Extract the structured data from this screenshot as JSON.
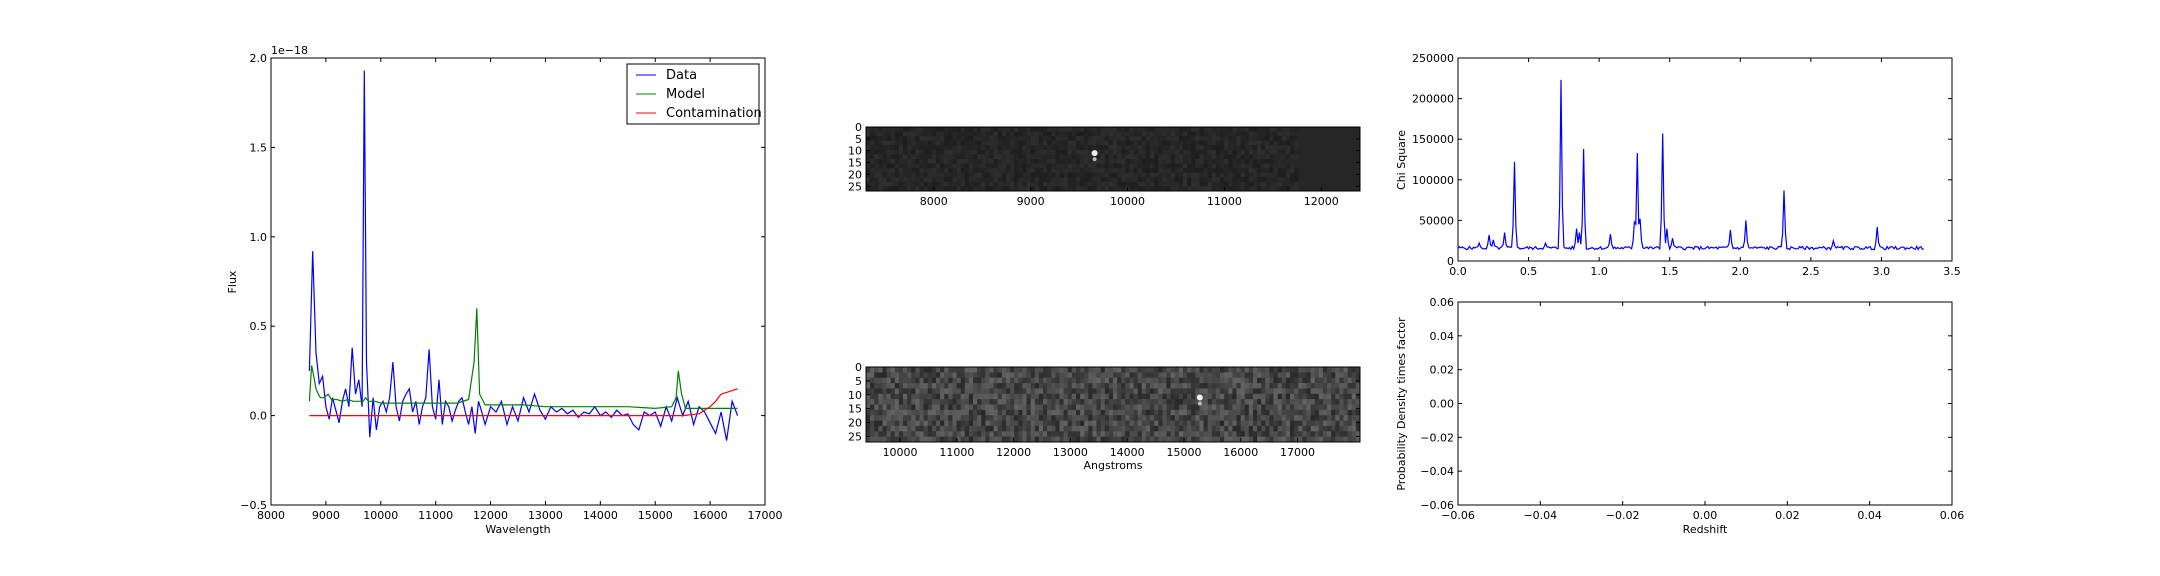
{
  "chart_data": [
    {
      "type": "line",
      "xlabel": "Wavelength",
      "ylabel": "Flux",
      "offset_label": "1e−18",
      "xlim": [
        8000,
        17000
      ],
      "ylim": [
        -0.5,
        2.0
      ],
      "xticks": [
        8000,
        9000,
        10000,
        11000,
        12000,
        13000,
        14000,
        15000,
        16000,
        17000
      ],
      "yticks": [
        -0.5,
        0.0,
        0.5,
        1.0,
        1.5,
        2.0
      ],
      "yticklabels": [
        "−0.5",
        "0.0",
        "0.5",
        "1.0",
        "1.5",
        "2.0"
      ],
      "legend_position": "top-right",
      "series": [
        {
          "name": "Data",
          "color": "#0000ff",
          "x": [
            8700,
            8760,
            8820,
            8880,
            8940,
            9000,
            9060,
            9120,
            9180,
            9240,
            9300,
            9360,
            9420,
            9480,
            9540,
            9600,
            9660,
            9700,
            9740,
            9800,
            9860,
            9920,
            9980,
            10040,
            10100,
            10160,
            10220,
            10280,
            10340,
            10400,
            10460,
            10520,
            10580,
            10640,
            10700,
            10760,
            10820,
            10880,
            10940,
            11000,
            11060,
            11120,
            11180,
            11240,
            11300,
            11360,
            11420,
            11480,
            11540,
            11600,
            11660,
            11720,
            11780,
            11840,
            11900,
            12000,
            12100,
            12200,
            12300,
            12400,
            12500,
            12600,
            12700,
            12800,
            12900,
            13000,
            13100,
            13200,
            13300,
            13400,
            13500,
            13600,
            13700,
            13800,
            13900,
            14000,
            14100,
            14200,
            14300,
            14400,
            14500,
            14600,
            14700,
            14800,
            14900,
            15000,
            15100,
            15200,
            15300,
            15400,
            15500,
            15600,
            15700,
            15800,
            15900,
            16000,
            16100,
            16200,
            16300,
            16400,
            16500
          ],
          "y": [
            0.25,
            0.92,
            0.35,
            0.18,
            0.22,
            0.05,
            -0.02,
            0.1,
            0.03,
            -0.04,
            0.08,
            0.15,
            0.05,
            0.38,
            0.12,
            0.2,
            0.05,
            1.93,
            0.3,
            -0.12,
            0.1,
            -0.08,
            0.05,
            0.08,
            0.02,
            0.1,
            0.3,
            0.05,
            -0.03,
            0.08,
            0.12,
            0.15,
            0.02,
            0.08,
            -0.05,
            0.05,
            0.1,
            0.37,
            0.05,
            -0.02,
            0.2,
            -0.05,
            0.08,
            0.05,
            -0.03,
            0.03,
            0.08,
            0.1,
            0.02,
            -0.05,
            0.05,
            -0.1,
            0.08,
            0.02,
            -0.05,
            0.05,
            0.02,
            0.08,
            -0.05,
            0.05,
            -0.03,
            0.1,
            0.02,
            0.12,
            0.03,
            -0.02,
            0.05,
            0.02,
            0.04,
            0.01,
            0.03,
            -0.01,
            0.02,
            0.01,
            0.05,
            0.0,
            0.02,
            -0.01,
            0.03,
            0.0,
            0.01,
            -0.05,
            -0.08,
            0.02,
            0.0,
            0.02,
            -0.06,
            0.05,
            -0.03,
            0.1,
            0.0,
            0.08,
            -0.05,
            0.05,
            0.02,
            -0.04,
            -0.1,
            0.02,
            -0.14,
            0.08,
            0.0
          ]
        },
        {
          "name": "Model",
          "color": "#008000",
          "x": [
            8700,
            8740,
            8780,
            8820,
            8860,
            8900,
            8960,
            9040,
            9100,
            9200,
            9300,
            9400,
            9500,
            9600,
            9680,
            9720,
            9780,
            9900,
            10000,
            10200,
            10400,
            10600,
            10800,
            11000,
            11200,
            11400,
            11600,
            11700,
            11750,
            11800,
            11900,
            12200,
            12600,
            13000,
            13500,
            14000,
            14500,
            15000,
            15300,
            15380,
            15420,
            15480,
            15550,
            15700,
            16000,
            16300,
            16500
          ],
          "y": [
            0.08,
            0.28,
            0.22,
            0.15,
            0.12,
            0.1,
            0.1,
            0.12,
            0.09,
            0.09,
            0.08,
            0.09,
            0.08,
            0.08,
            0.08,
            0.1,
            0.08,
            0.08,
            0.07,
            0.07,
            0.07,
            0.07,
            0.07,
            0.07,
            0.07,
            0.07,
            0.09,
            0.3,
            0.6,
            0.12,
            0.06,
            0.06,
            0.06,
            0.05,
            0.05,
            0.05,
            0.05,
            0.04,
            0.05,
            0.1,
            0.25,
            0.12,
            0.04,
            0.04,
            0.04,
            0.04,
            0.04
          ]
        },
        {
          "name": "Contamination",
          "color": "#ff0000",
          "x": [
            8700,
            9500,
            10500,
            11500,
            12500,
            13500,
            14500,
            15000,
            15500,
            15800,
            15900,
            16000,
            16100,
            16200,
            16300,
            16400,
            16500
          ],
          "y": [
            0.0,
            0.0,
            0.0,
            0.0,
            0.0,
            0.0,
            0.0,
            0.0,
            0.0,
            0.01,
            0.03,
            0.05,
            0.08,
            0.12,
            0.13,
            0.14,
            0.15
          ]
        }
      ]
    },
    {
      "type": "heatmap",
      "xticks": [
        8000,
        9000,
        10000,
        11000,
        12000
      ],
      "xlim": [
        7300,
        12400
      ],
      "yticks": [
        0,
        5,
        10,
        15,
        20,
        25
      ],
      "ylim": [
        27,
        0
      ],
      "xlabel": "",
      "ylabel": "",
      "bright_spot_x": 9660,
      "bright_spot_y": 11
    },
    {
      "type": "heatmap",
      "xticks": [
        10000,
        11000,
        12000,
        13000,
        14000,
        15000,
        16000,
        17000
      ],
      "xlim": [
        9400,
        18100
      ],
      "yticks": [
        0,
        5,
        10,
        15,
        20,
        25
      ],
      "ylim": [
        27,
        0
      ],
      "xlabel": "Angstroms",
      "ylabel": "",
      "bright_spot_x": 15280,
      "bright_spot_y": 11
    },
    {
      "type": "line",
      "xlabel": "",
      "ylabel": "Chi Square",
      "xlim": [
        0.0,
        3.5
      ],
      "ylim": [
        0,
        250000
      ],
      "xticks": [
        0.0,
        0.5,
        1.0,
        1.5,
        2.0,
        2.5,
        3.0,
        3.5
      ],
      "xticklabels": [
        "0.0",
        "0.5",
        "1.0",
        "1.5",
        "2.0",
        "2.5",
        "3.0",
        "3.5"
      ],
      "yticks": [
        0,
        50000,
        100000,
        150000,
        200000,
        250000
      ],
      "series": [
        {
          "color": "#0000ff",
          "peaks": [
            [
              0.15,
              22000
            ],
            [
              0.22,
              32000
            ],
            [
              0.25,
              26000
            ],
            [
              0.33,
              35000
            ],
            [
              0.4,
              122000
            ],
            [
              0.62,
              22000
            ],
            [
              0.73,
              223000
            ],
            [
              0.84,
              40000
            ],
            [
              0.86,
              35000
            ],
            [
              0.89,
              138000
            ],
            [
              1.08,
              33000
            ],
            [
              1.25,
              48000
            ],
            [
              1.27,
              133000
            ],
            [
              1.29,
              52000
            ],
            [
              1.45,
              157000
            ],
            [
              1.48,
              40000
            ],
            [
              1.52,
              28000
            ],
            [
              1.93,
              38000
            ],
            [
              2.04,
              50000
            ],
            [
              2.31,
              87000
            ],
            [
              2.66,
              25000
            ],
            [
              2.97,
              42000
            ]
          ],
          "baseline": 16000,
          "x_start": 0.0,
          "x_end": 3.3
        }
      ]
    },
    {
      "type": "line",
      "xlabel": "Redshift",
      "ylabel": "Probability Density times factor",
      "xlim": [
        -0.06,
        0.06
      ],
      "ylim": [
        -0.06,
        0.06
      ],
      "xticks": [
        -0.06,
        -0.04,
        -0.02,
        0.0,
        0.02,
        0.04,
        0.06
      ],
      "xticklabels": [
        "−0.06",
        "−0.04",
        "−0.02",
        "0.00",
        "0.02",
        "0.04",
        "0.06"
      ],
      "yticks": [
        -0.06,
        -0.04,
        -0.02,
        0.0,
        0.02,
        0.04,
        0.06
      ],
      "yticklabels": [
        "−0.06",
        "−0.04",
        "−0.02",
        "0.00",
        "0.02",
        "0.04",
        "0.06"
      ],
      "series": []
    }
  ]
}
